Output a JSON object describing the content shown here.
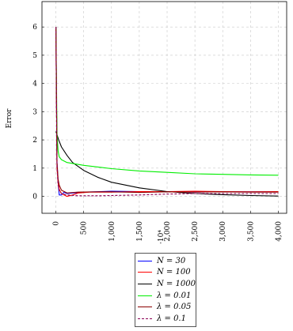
{
  "chart_data": {
    "type": "line",
    "ylabel": "Error",
    "xlabel": "",
    "xlim": [
      -250,
      4150
    ],
    "ylim": [
      -0.6,
      6.9
    ],
    "grid": true,
    "legend_position": "below",
    "x_ticks": [
      0,
      500,
      1000,
      1500,
      2000,
      2500,
      3000,
      3500,
      4000
    ],
    "x_tick_labels": [
      "0",
      "500",
      "1,000",
      "1,500",
      "2,000",
      "2,500",
      "3,000",
      "3,500",
      "4,000"
    ],
    "y_ticks": [
      0,
      1,
      2,
      3,
      4,
      5,
      6
    ],
    "y_tick_labels": [
      "0",
      "1",
      "2",
      "3",
      "4",
      "5",
      "6"
    ],
    "axis_scale_note": "·10⁴",
    "series": [
      {
        "name": "N = 30",
        "color": "#0000ff",
        "dash": "solid",
        "x": [
          0,
          20,
          40,
          60,
          100,
          150,
          200,
          300,
          500,
          1000,
          1500,
          2000,
          2500,
          3000,
          3500,
          4000
        ],
        "y": [
          6.0,
          1.2,
          0.5,
          0.05,
          0.05,
          0.15,
          0.1,
          0.12,
          0.15,
          0.18,
          0.17,
          0.16,
          0.15,
          0.16,
          0.16,
          0.16
        ]
      },
      {
        "name": "N = 100",
        "color": "#ff0000",
        "dash": "solid",
        "x": [
          0,
          20,
          40,
          60,
          100,
          200,
          300,
          400,
          600,
          1000,
          1500,
          2000,
          2500,
          3000,
          3500,
          4000
        ],
        "y": [
          6.0,
          1.0,
          0.5,
          0.25,
          0.1,
          0.0,
          0.05,
          0.12,
          0.15,
          0.15,
          0.17,
          0.17,
          0.18,
          0.17,
          0.16,
          0.17
        ]
      },
      {
        "name": "N = 1000",
        "color": "#000000",
        "dash": "solid",
        "x": [
          0,
          50,
          100,
          200,
          300,
          500,
          750,
          1000,
          1500,
          2000,
          2500,
          3000,
          3500,
          4000
        ],
        "y": [
          2.3,
          2.0,
          1.75,
          1.45,
          1.2,
          0.92,
          0.68,
          0.5,
          0.3,
          0.17,
          0.1,
          0.06,
          0.03,
          0.01
        ]
      },
      {
        "name": "λ = 0.01",
        "color": "#00ee00",
        "dash": "solid",
        "x": [
          0,
          20,
          40,
          60,
          100,
          200,
          500,
          1000,
          1500,
          2000,
          2500,
          3000,
          3500,
          4000
        ],
        "y": [
          6.0,
          2.2,
          1.6,
          1.4,
          1.3,
          1.2,
          1.1,
          0.98,
          0.9,
          0.85,
          0.8,
          0.78,
          0.76,
          0.75
        ]
      },
      {
        "name": "λ = 0.05",
        "color": "#8b0000",
        "dash": "solid",
        "x": [
          0,
          20,
          40,
          60,
          100,
          200,
          400,
          800,
          1000,
          1500,
          2000,
          2500,
          3000,
          3500,
          4000
        ],
        "y": [
          6.0,
          1.2,
          0.6,
          0.4,
          0.22,
          0.12,
          0.15,
          0.16,
          0.16,
          0.14,
          0.16,
          0.15,
          0.16,
          0.15,
          0.15
        ]
      },
      {
        "name": "λ = 0.1",
        "color": "#8b0055",
        "dash": "dashed",
        "x": [
          0,
          20,
          40,
          60,
          100,
          200,
          400,
          800,
          1000,
          1500,
          2000,
          2500,
          3000,
          3500,
          4000
        ],
        "y": [
          6.0,
          1.0,
          0.4,
          0.2,
          0.1,
          0.05,
          0.02,
          0.02,
          0.03,
          0.05,
          0.08,
          0.1,
          0.1,
          0.1,
          0.1
        ]
      }
    ]
  }
}
